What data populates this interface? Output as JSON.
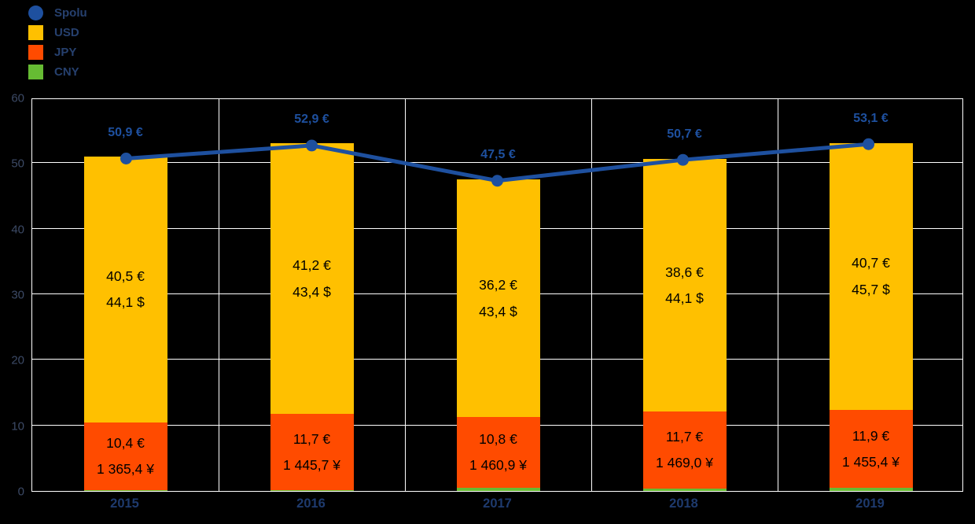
{
  "legend": {
    "items": [
      {
        "label": "Spolu",
        "color": "#1e509f",
        "shape": "circle"
      },
      {
        "label": "USD",
        "color": "#ffc000",
        "shape": "square"
      },
      {
        "label": "JPY",
        "color": "#ff4b00",
        "shape": "square"
      },
      {
        "label": "CNY",
        "color": "#66bb33",
        "shape": "square"
      }
    ]
  },
  "chart_data": {
    "type": "bar",
    "subtype": "stacked-bars-with-total-line",
    "title": "",
    "xlabel": "",
    "ylabel": "",
    "categories": [
      "2015",
      "2016",
      "2017",
      "2018",
      "2019"
    ],
    "series": [
      {
        "name": "CNY",
        "color": "#66bb33",
        "values": [
          0.1,
          0.1,
          0.5,
          0.4,
          0.5
        ],
        "note": "values estimated from bar heights; no data labels shown"
      },
      {
        "name": "JPY",
        "color": "#ff4b00",
        "values": [
          10.4,
          11.7,
          10.8,
          11.7,
          11.9
        ],
        "labels_eur": [
          "10,4 €",
          "11,7 €",
          "10,8 €",
          "11,7 €",
          "11,9 €"
        ],
        "labels_native": [
          "1 365,4 ¥",
          "1 445,7 ¥",
          "1 460,9 ¥",
          "1 469,0 ¥",
          "1 455,4 ¥"
        ]
      },
      {
        "name": "USD",
        "color": "#ffc000",
        "values": [
          40.5,
          41.2,
          36.2,
          38.6,
          40.7
        ],
        "labels_eur": [
          "40,5 €",
          "41,2 €",
          "36,2 €",
          "38,6 €",
          "40,7 €"
        ],
        "labels_native": [
          "44,1 $",
          "43,4 $",
          "43,4 $",
          "44,1 $",
          "45,7 $"
        ]
      }
    ],
    "line": {
      "name": "Spolu",
      "color": "#1e509f",
      "values": [
        50.9,
        52.9,
        47.5,
        50.7,
        53.1
      ],
      "labels": [
        "50,9 €",
        "52,9 €",
        "47,5 €",
        "50,7 €",
        "53,1 €"
      ]
    },
    "ylim": [
      0,
      60
    ],
    "yticks": [
      0,
      10,
      20,
      30,
      40,
      50,
      60
    ],
    "grid": true,
    "legend_position": "top-left"
  },
  "colors": {
    "background": "#000000",
    "grid": "#ffffff",
    "plot_border": "#ffffff",
    "bar_label_text": "#000000",
    "line_label_text": "#1e509f",
    "legend_text": "#26406e",
    "ytick_text": "#3c4a66",
    "xtick_text": "#1e3a6d"
  }
}
